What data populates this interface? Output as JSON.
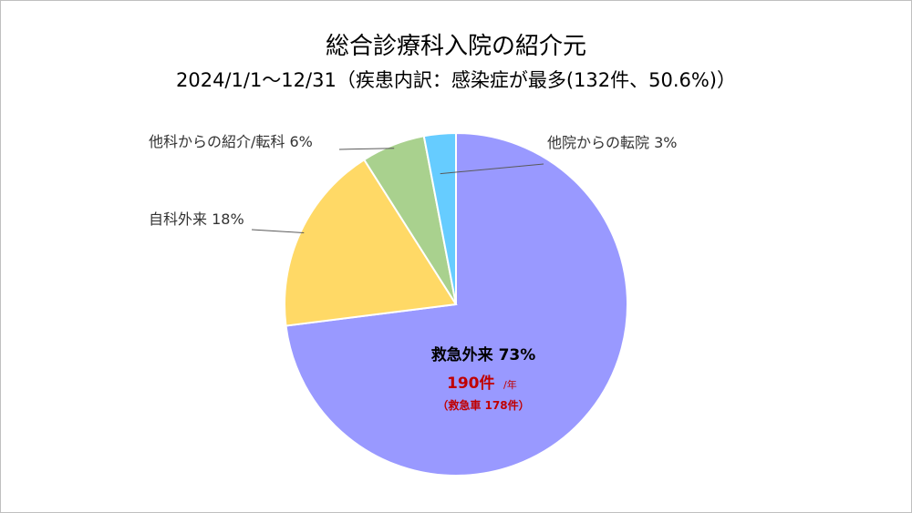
{
  "title": "総合診療科入院の紹介元",
  "subtitle": "2024/1/1～12/31（疾患内訳：感染症が最多(132件、50.6%)）",
  "colors": {
    "救急外来": "#9999ff",
    "自科外来": "#ffd966",
    "他科からの紹介/転科": "#a9d18e",
    "他院からの転院": "#66ccff"
  },
  "chart_data": {
    "type": "pie",
    "title": "総合診療科入院の紹介元",
    "subtitle": "2024/1/1～12/31（疾患内訳：感染症が最多(132件、50.6%)）",
    "slices": [
      {
        "label": "救急外来",
        "value": 73,
        "label_text": "救急外来 73%"
      },
      {
        "label": "自科外来",
        "value": 18,
        "label_text": "自科外来 18%"
      },
      {
        "label": "他科からの紹介/転科",
        "value": 6,
        "label_text": "他科からの紹介/転科 6%"
      },
      {
        "label": "他院からの転院",
        "value": 3,
        "label_text": "他院からの転院 3%"
      }
    ],
    "annotations": {
      "count": "190件",
      "unit": "/年",
      "ambulance": "（救急車 178件）"
    }
  }
}
